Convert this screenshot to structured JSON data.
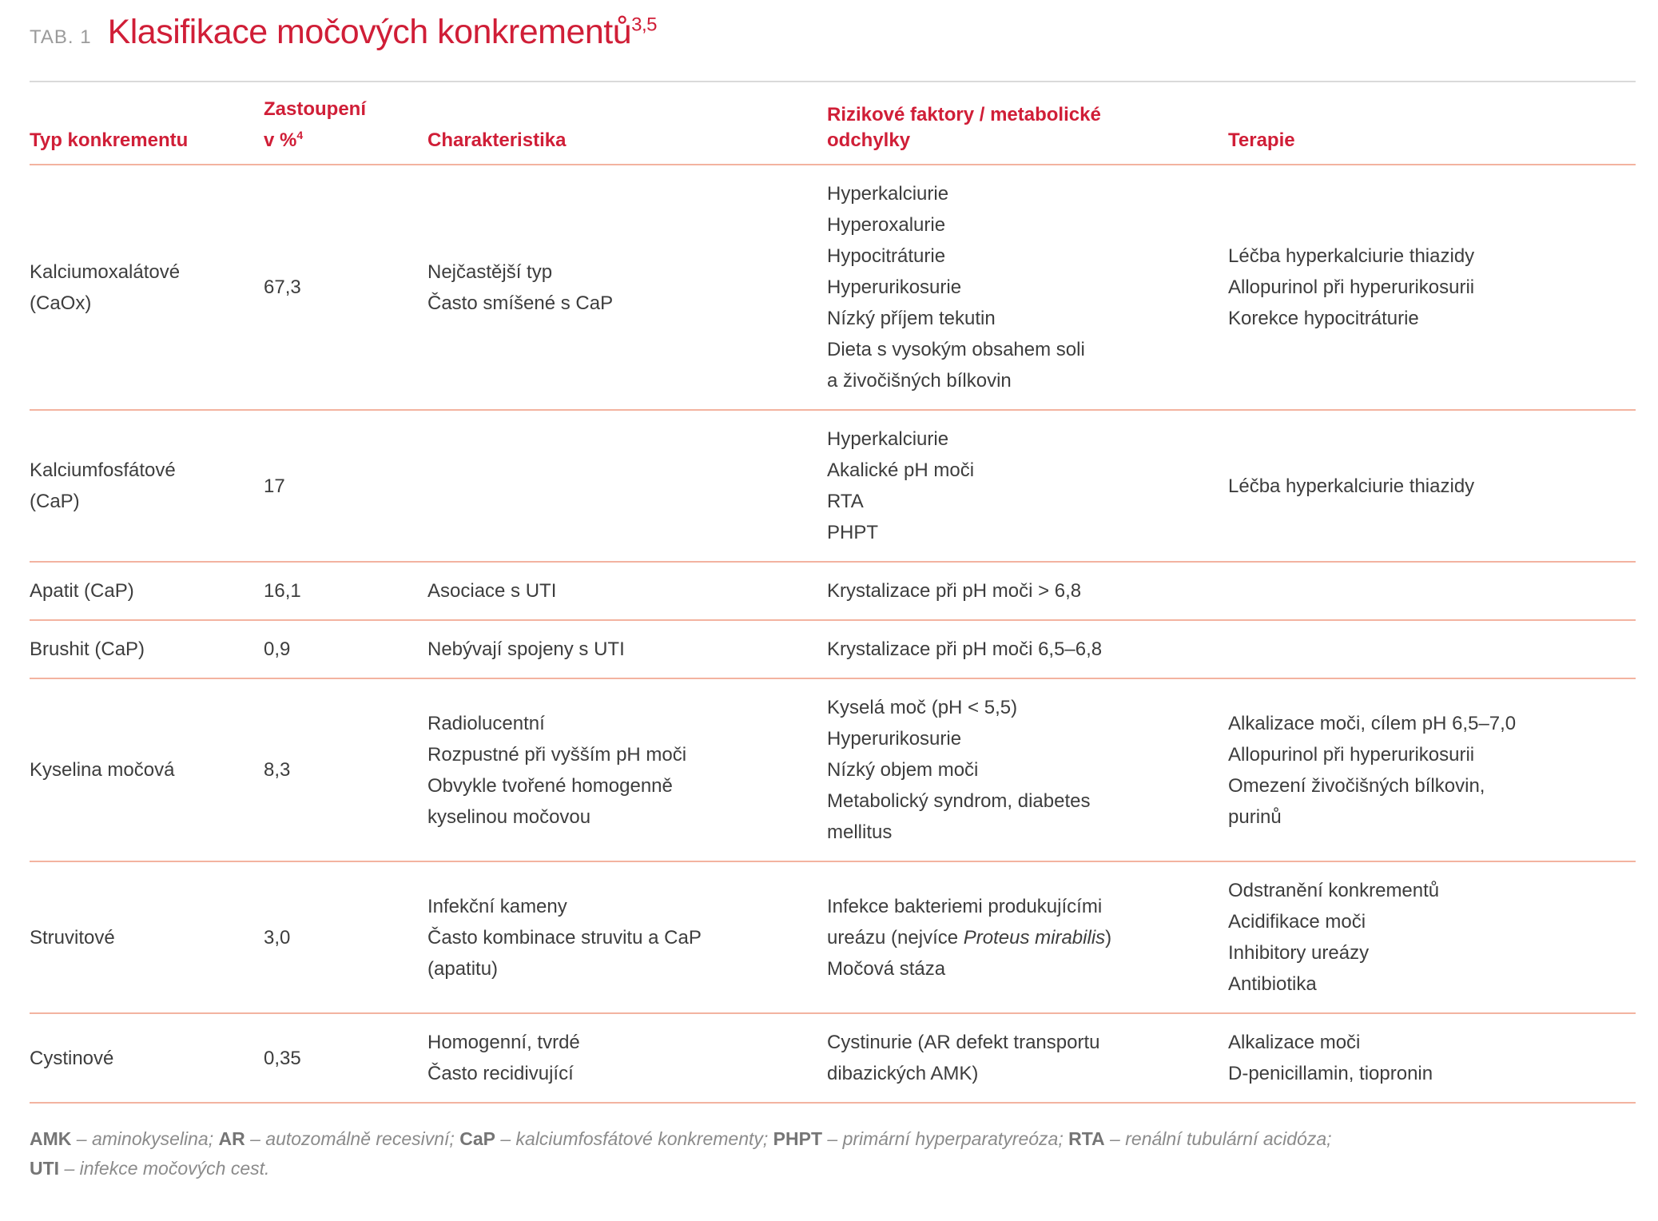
{
  "colors": {
    "accent": "#d01e37",
    "row_divider": "#f3b3a0",
    "header_top_line": "#dadada",
    "body_text": "#3d3d3d",
    "tag_text": "#9b9b9b",
    "footnote_text": "#8b8b8b",
    "footnote_abbr": "#757575"
  },
  "title": {
    "tag": "TAB. 1",
    "text": "Klasifikace močových konkrementů",
    "sup": "3,5"
  },
  "table": {
    "headers": [
      {
        "text": "Typ konkrementu"
      },
      {
        "text": "Zastoupení\nv %",
        "sup": "4"
      },
      {
        "text": "Charakteristika"
      },
      {
        "text": "Rizikové faktory / metabolické\nodchylky"
      },
      {
        "text": "Terapie"
      }
    ],
    "rows": [
      {
        "type": "Kalciumoxalátové\n(CaOx)",
        "share": "67,3",
        "characteristics": "Nejčastější typ\nČasto smíšené s CaP",
        "risk_factors": "Hyperkalciurie\nHyperoxalurie\nHypocitráturie\nHyperurikosurie\nNízký příjem tekutin\nDieta s vysokým obsahem soli\na živočišných bílkovin",
        "therapy": "Léčba hyperkalciurie thiazidy\nAllopurinol při hyperurikosurii\nKorekce hypocitráturie"
      },
      {
        "type": "Kalciumfosfátové\n(CaP)",
        "share": "17",
        "characteristics": "",
        "risk_factors": "Hyperkalciurie\nAkalické pH moči\nRTA\nPHPT",
        "therapy": "Léčba hyperkalciurie thiazidy"
      },
      {
        "type": "Apatit (CaP)",
        "share": "16,1",
        "characteristics": "Asociace s UTI",
        "risk_factors": "Krystalizace při pH moči > 6,8",
        "therapy": ""
      },
      {
        "type": "Brushit (CaP)",
        "share": "0,9",
        "characteristics": "Nebývají spojeny s UTI",
        "risk_factors": "Krystalizace při pH moči 6,5–6,8",
        "therapy": ""
      },
      {
        "type": "Kyselina močová",
        "share": "8,3",
        "characteristics": "Radiolucentní\nRozpustné při vyšším pH moči\nObvykle tvořené homogenně\nkyselinou močovou",
        "risk_factors": "Kyselá moč (pH < 5,5)\nHyperurikosurie\nNízký objem moči\nMetabolický syndrom, diabetes\nmellitus",
        "therapy": "Alkalizace moči, cílem pH 6,5–7,0\nAllopurinol při hyperurikosurii\nOmezení živočišných bílkovin,\npurinů"
      },
      {
        "type": "Struvitové",
        "share": "3,0",
        "characteristics": "Infekční kameny\nČasto kombinace struvitu a CaP\n(apatitu)",
        "risk_factors_rich": [
          {
            "t": "Infekce bakteriemi produkujícími\nureázu (nejvíce "
          },
          {
            "t": "Proteus mirabilis",
            "i": 1
          },
          {
            "t": ")\nMočová stáza"
          }
        ],
        "therapy": "Odstranění konkrementů\nAcidifikace moči\nInhibitory ureázy\nAntibiotika"
      },
      {
        "type": "Cystinové",
        "share": "0,35",
        "characteristics": "Homogenní, tvrdé\nČasto recidivující",
        "risk_factors": "Cystinurie (AR defekt transportu\ndibazických AMK)",
        "therapy": "Alkalizace moči\nD-penicillamin, tiopronin"
      }
    ]
  },
  "footnote": {
    "segments": [
      {
        "t": "AMK",
        "b": 1
      },
      {
        "t": " – aminokyselina; ",
        "i": 1
      },
      {
        "t": "AR",
        "b": 1
      },
      {
        "t": " – autozomálně recesivní; ",
        "i": 1
      },
      {
        "t": "CaP",
        "b": 1
      },
      {
        "t": " – kalciumfosfátové konkrementy; ",
        "i": 1
      },
      {
        "t": "PHPT",
        "b": 1
      },
      {
        "t": " – primární hyperparatyreóza; ",
        "i": 1
      },
      {
        "t": "RTA",
        "b": 1
      },
      {
        "t": " – renální tubulární acidóza;\n",
        "i": 1
      },
      {
        "t": "UTI",
        "b": 1
      },
      {
        "t": " – infekce močových cest.",
        "i": 1
      }
    ]
  }
}
